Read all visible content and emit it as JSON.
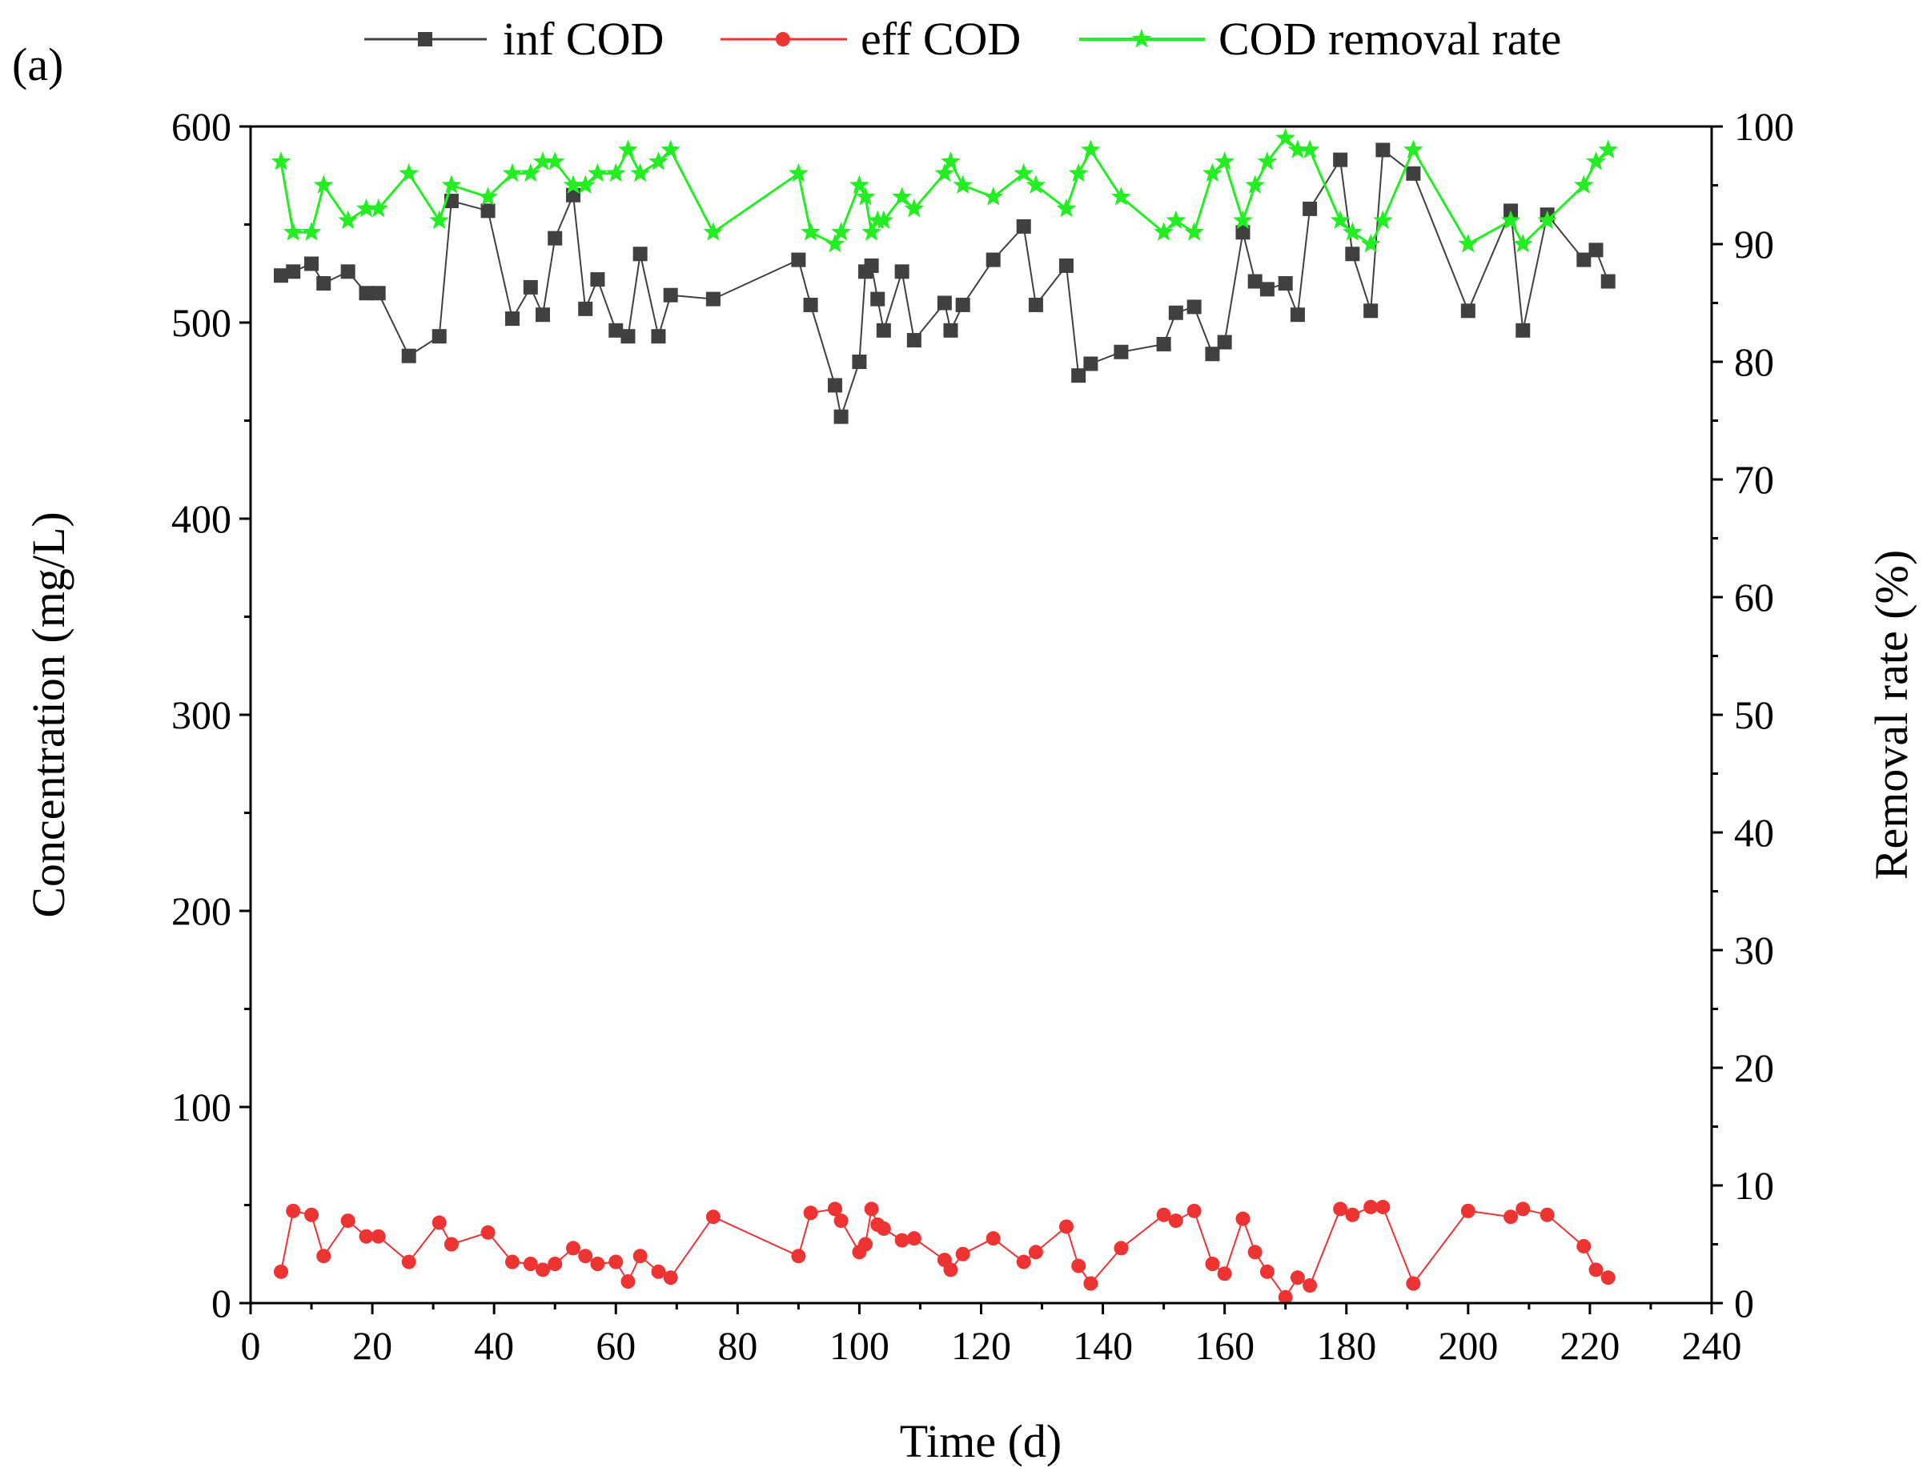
{
  "chart_data": {
    "type": "line",
    "panel_label": "(a)",
    "xlabel": "Time (d)",
    "ylabel": "Concentration (mg/L)",
    "y2label": "Removal rate (%)",
    "xlim": [
      0,
      240
    ],
    "ylim": [
      0,
      600
    ],
    "y2lim": [
      0,
      100
    ],
    "xticks": [
      0,
      20,
      40,
      60,
      80,
      100,
      120,
      140,
      160,
      180,
      200,
      220,
      240
    ],
    "yticks": [
      0,
      100,
      200,
      300,
      400,
      500,
      600
    ],
    "y2ticks": [
      0,
      10,
      20,
      30,
      40,
      50,
      60,
      70,
      80,
      90,
      100
    ],
    "grid": false,
    "legend_position": "top-center",
    "series": [
      {
        "name": "inf COD",
        "axis": "left",
        "color": "#404040",
        "marker": "square",
        "points": [
          [
            5,
            524
          ],
          [
            7,
            526
          ],
          [
            10,
            530
          ],
          [
            12,
            520
          ],
          [
            16,
            526
          ],
          [
            19,
            515
          ],
          [
            21,
            515
          ],
          [
            26,
            483
          ],
          [
            31,
            493
          ],
          [
            33,
            562
          ],
          [
            39,
            557
          ],
          [
            43,
            502
          ],
          [
            46,
            518
          ],
          [
            48,
            504
          ],
          [
            50,
            543
          ],
          [
            53,
            565
          ],
          [
            55,
            507
          ],
          [
            57,
            522
          ],
          [
            60,
            496
          ],
          [
            62,
            493
          ],
          [
            64,
            535
          ],
          [
            67,
            493
          ],
          [
            69,
            514
          ],
          [
            76,
            512
          ],
          [
            90,
            532
          ],
          [
            92,
            509
          ],
          [
            96,
            468
          ],
          [
            97,
            452
          ],
          [
            100,
            480
          ],
          [
            101,
            526
          ],
          [
            102,
            529
          ],
          [
            103,
            512
          ],
          [
            104,
            496
          ],
          [
            107,
            526
          ],
          [
            109,
            491
          ],
          [
            114,
            510
          ],
          [
            115,
            496
          ],
          [
            117,
            509
          ],
          [
            122,
            532
          ],
          [
            127,
            549
          ],
          [
            129,
            509
          ],
          [
            134,
            529
          ],
          [
            136,
            473
          ],
          [
            138,
            479
          ],
          [
            143,
            485
          ],
          [
            150,
            489
          ],
          [
            152,
            505
          ],
          [
            155,
            508
          ],
          [
            158,
            484
          ],
          [
            160,
            490
          ],
          [
            163,
            546
          ],
          [
            165,
            521
          ],
          [
            167,
            517
          ],
          [
            170,
            520
          ],
          [
            172,
            504
          ],
          [
            174,
            558
          ],
          [
            179,
            583
          ],
          [
            181,
            535
          ],
          [
            184,
            506
          ],
          [
            186,
            588
          ],
          [
            191,
            576
          ],
          [
            200,
            506
          ],
          [
            207,
            557
          ],
          [
            209,
            496
          ],
          [
            213,
            555
          ],
          [
            219,
            532
          ],
          [
            221,
            537
          ],
          [
            223,
            521
          ]
        ]
      },
      {
        "name": "eff COD",
        "axis": "left",
        "color": "#ee3333",
        "marker": "circle",
        "points": [
          [
            5,
            16
          ],
          [
            7,
            47
          ],
          [
            10,
            45
          ],
          [
            12,
            24
          ],
          [
            16,
            42
          ],
          [
            19,
            34
          ],
          [
            21,
            34
          ],
          [
            26,
            21
          ],
          [
            31,
            41
          ],
          [
            33,
            30
          ],
          [
            39,
            36
          ],
          [
            43,
            21
          ],
          [
            46,
            20
          ],
          [
            48,
            17
          ],
          [
            50,
            20
          ],
          [
            53,
            28
          ],
          [
            55,
            24
          ],
          [
            57,
            20
          ],
          [
            60,
            21
          ],
          [
            62,
            11
          ],
          [
            64,
            24
          ],
          [
            67,
            16
          ],
          [
            69,
            13
          ],
          [
            76,
            44
          ],
          [
            90,
            24
          ],
          [
            92,
            46
          ],
          [
            96,
            48
          ],
          [
            97,
            42
          ],
          [
            100,
            26
          ],
          [
            101,
            30
          ],
          [
            102,
            48
          ],
          [
            103,
            40
          ],
          [
            104,
            38
          ],
          [
            107,
            32
          ],
          [
            109,
            33
          ],
          [
            114,
            22
          ],
          [
            115,
            17
          ],
          [
            117,
            25
          ],
          [
            122,
            33
          ],
          [
            127,
            21
          ],
          [
            129,
            26
          ],
          [
            134,
            39
          ],
          [
            136,
            19
          ],
          [
            138,
            10
          ],
          [
            143,
            28
          ],
          [
            150,
            45
          ],
          [
            152,
            42
          ],
          [
            155,
            47
          ],
          [
            158,
            20
          ],
          [
            160,
            15
          ],
          [
            163,
            43
          ],
          [
            165,
            26
          ],
          [
            167,
            16
          ],
          [
            170,
            3
          ],
          [
            172,
            13
          ],
          [
            174,
            9
          ],
          [
            179,
            48
          ],
          [
            181,
            45
          ],
          [
            184,
            49
          ],
          [
            186,
            49
          ],
          [
            191,
            10
          ],
          [
            200,
            47
          ],
          [
            207,
            44
          ],
          [
            209,
            48
          ],
          [
            213,
            45
          ],
          [
            219,
            29
          ],
          [
            221,
            17
          ],
          [
            223,
            13
          ]
        ]
      },
      {
        "name": "COD removal rate",
        "axis": "right",
        "color": "#22ee22",
        "marker": "star",
        "points": [
          [
            5,
            97
          ],
          [
            7,
            91
          ],
          [
            10,
            91
          ],
          [
            12,
            95
          ],
          [
            16,
            92
          ],
          [
            19,
            93
          ],
          [
            21,
            93
          ],
          [
            26,
            96
          ],
          [
            31,
            92
          ],
          [
            33,
            95
          ],
          [
            39,
            94
          ],
          [
            43,
            96
          ],
          [
            46,
            96
          ],
          [
            48,
            97
          ],
          [
            50,
            97
          ],
          [
            53,
            95
          ],
          [
            55,
            95
          ],
          [
            57,
            96
          ],
          [
            60,
            96
          ],
          [
            62,
            98
          ],
          [
            64,
            96
          ],
          [
            67,
            97
          ],
          [
            69,
            98
          ],
          [
            76,
            91
          ],
          [
            90,
            96
          ],
          [
            92,
            91
          ],
          [
            96,
            90
          ],
          [
            97,
            91
          ],
          [
            100,
            95
          ],
          [
            101,
            94
          ],
          [
            102,
            91
          ],
          [
            103,
            92
          ],
          [
            104,
            92
          ],
          [
            107,
            94
          ],
          [
            109,
            93
          ],
          [
            114,
            96
          ],
          [
            115,
            97
          ],
          [
            117,
            95
          ],
          [
            122,
            94
          ],
          [
            127,
            96
          ],
          [
            129,
            95
          ],
          [
            134,
            93
          ],
          [
            136,
            96
          ],
          [
            138,
            98
          ],
          [
            143,
            94
          ],
          [
            150,
            91
          ],
          [
            152,
            92
          ],
          [
            155,
            91
          ],
          [
            158,
            96
          ],
          [
            160,
            97
          ],
          [
            163,
            92
          ],
          [
            165,
            95
          ],
          [
            167,
            97
          ],
          [
            170,
            99
          ],
          [
            172,
            98
          ],
          [
            174,
            98
          ],
          [
            179,
            92
          ],
          [
            181,
            91
          ],
          [
            184,
            90
          ],
          [
            186,
            92
          ],
          [
            191,
            98
          ],
          [
            200,
            90
          ],
          [
            207,
            92
          ],
          [
            209,
            90
          ],
          [
            213,
            92
          ],
          [
            219,
            95
          ],
          [
            221,
            97
          ],
          [
            223,
            98
          ]
        ]
      }
    ]
  }
}
